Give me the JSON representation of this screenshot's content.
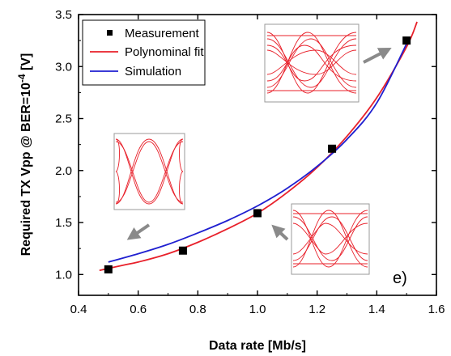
{
  "chart_data": {
    "type": "line",
    "xlabel": "Data rate [Mb/s]",
    "ylabel_main": "Required TX Vpp @ BER=10",
    "ylabel_exp": "-4",
    "ylabel_unit": " [V]",
    "xlim": [
      0.4,
      1.6
    ],
    "ylim": [
      0.8,
      3.5
    ],
    "xticks": [
      "0.4",
      "0.6",
      "0.8",
      "1.0",
      "1.2",
      "1.4",
      "1.6"
    ],
    "yticks": [
      "1.0",
      "1.5",
      "2.0",
      "2.5",
      "3.0",
      "3.5"
    ],
    "panel_label": "e)",
    "series": [
      {
        "name": "Measurement",
        "kind": "marker",
        "color": "#000000",
        "x": [
          0.5,
          0.75,
          1.0,
          1.25,
          1.5
        ],
        "y": [
          1.05,
          1.23,
          1.59,
          2.21,
          3.25
        ]
      },
      {
        "name": "Polynominal fit",
        "kind": "line",
        "color": "#e8202a",
        "x": [
          0.47,
          0.55,
          0.6,
          0.7,
          0.8,
          0.9,
          1.0,
          1.1,
          1.2,
          1.3,
          1.4,
          1.5,
          1.535
        ],
        "y": [
          1.04,
          1.09,
          1.12,
          1.2,
          1.31,
          1.44,
          1.59,
          1.79,
          2.03,
          2.33,
          2.7,
          3.19,
          3.43
        ]
      },
      {
        "name": "Simulation",
        "kind": "line",
        "color": "#1f1fd0",
        "x": [
          0.5,
          0.6,
          0.7,
          0.8,
          0.9,
          1.0,
          1.1,
          1.2,
          1.3,
          1.4,
          1.5
        ],
        "y": [
          1.12,
          1.2,
          1.29,
          1.4,
          1.52,
          1.66,
          1.83,
          2.04,
          2.3,
          2.65,
          3.22
        ]
      }
    ],
    "legend": {
      "position": "top-left"
    },
    "insets": [
      {
        "name": "eye-diagram-top",
        "points_to": [
          1.5,
          3.25
        ]
      },
      {
        "name": "eye-diagram-left",
        "points_to": [
          0.5,
          1.05
        ]
      },
      {
        "name": "eye-diagram-right",
        "points_to": [
          1.0,
          1.59
        ]
      }
    ]
  }
}
